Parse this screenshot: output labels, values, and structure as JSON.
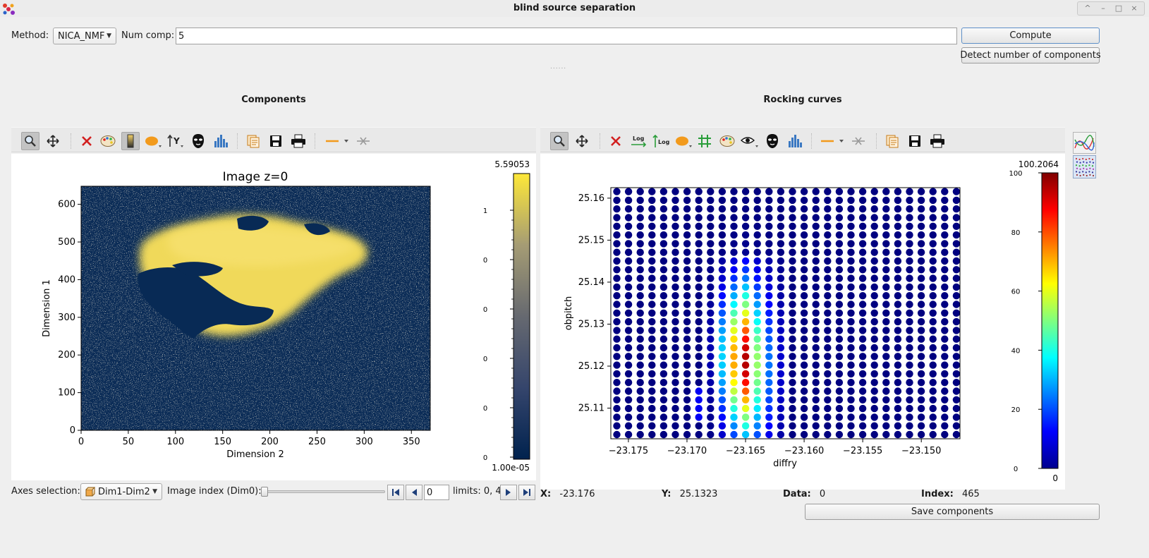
{
  "window": {
    "title": "blind source separation",
    "controls": [
      "^",
      "–",
      "□",
      "×"
    ]
  },
  "controls": {
    "method_label": "Method:",
    "method_value": "NICA_NMF",
    "num_comp_label": "Num comp:",
    "num_comp_value": "5",
    "compute_label": "Compute",
    "detect_label": "Detect number of components",
    "splitter_handle": "......"
  },
  "left_panel": {
    "title": "Components",
    "plot": {
      "title": "Image z=0",
      "xlabel": "Dimension 2",
      "ylabel": "Dimension 1",
      "x_ticks": [
        "0",
        "50",
        "100",
        "150",
        "200",
        "250",
        "300",
        "350"
      ],
      "y_ticks": [
        "0",
        "100",
        "200",
        "300",
        "400",
        "500",
        "600"
      ],
      "colorbar_max": "5.59053",
      "colorbar_min": "1.00e-05",
      "colorbar_ticks": [
        "1",
        "0",
        "0",
        "0",
        "0",
        "0"
      ],
      "colormap": "cividis"
    }
  },
  "right_panel": {
    "title": "Rocking curves",
    "plot": {
      "xlabel": "diffry",
      "ylabel": "obpitch",
      "x_ticks": [
        "−23.175",
        "−23.170",
        "−23.165",
        "−23.160",
        "−23.155",
        "−23.150"
      ],
      "y_ticks": [
        "25.11",
        "25.12",
        "25.13",
        "25.14",
        "25.15",
        "25.16"
      ],
      "colorbar_max": "100.2064",
      "colorbar_min": "0",
      "colorbar_ticks": [
        "100",
        "80",
        "60",
        "40",
        "20",
        "0"
      ],
      "colormap": "jet"
    },
    "side_buttons": [
      "curves-view-icon",
      "scatter-view-icon"
    ]
  },
  "bottom": {
    "axes_selection_label": "Axes selection:",
    "axes_selection_value": "Dim1-Dim2",
    "image_index_label": "Image index (Dim0):",
    "image_index_value": "0",
    "limits_label": "limits: 0, 4",
    "save_label": "Save components",
    "slider_value": 0
  },
  "status": {
    "x_label": "X:",
    "x_value": "-23.176",
    "y_label": "Y:",
    "y_value": "25.1323",
    "data_label": "Data:",
    "data_value": "0",
    "index_label": "Index:",
    "index_value": "465"
  }
}
